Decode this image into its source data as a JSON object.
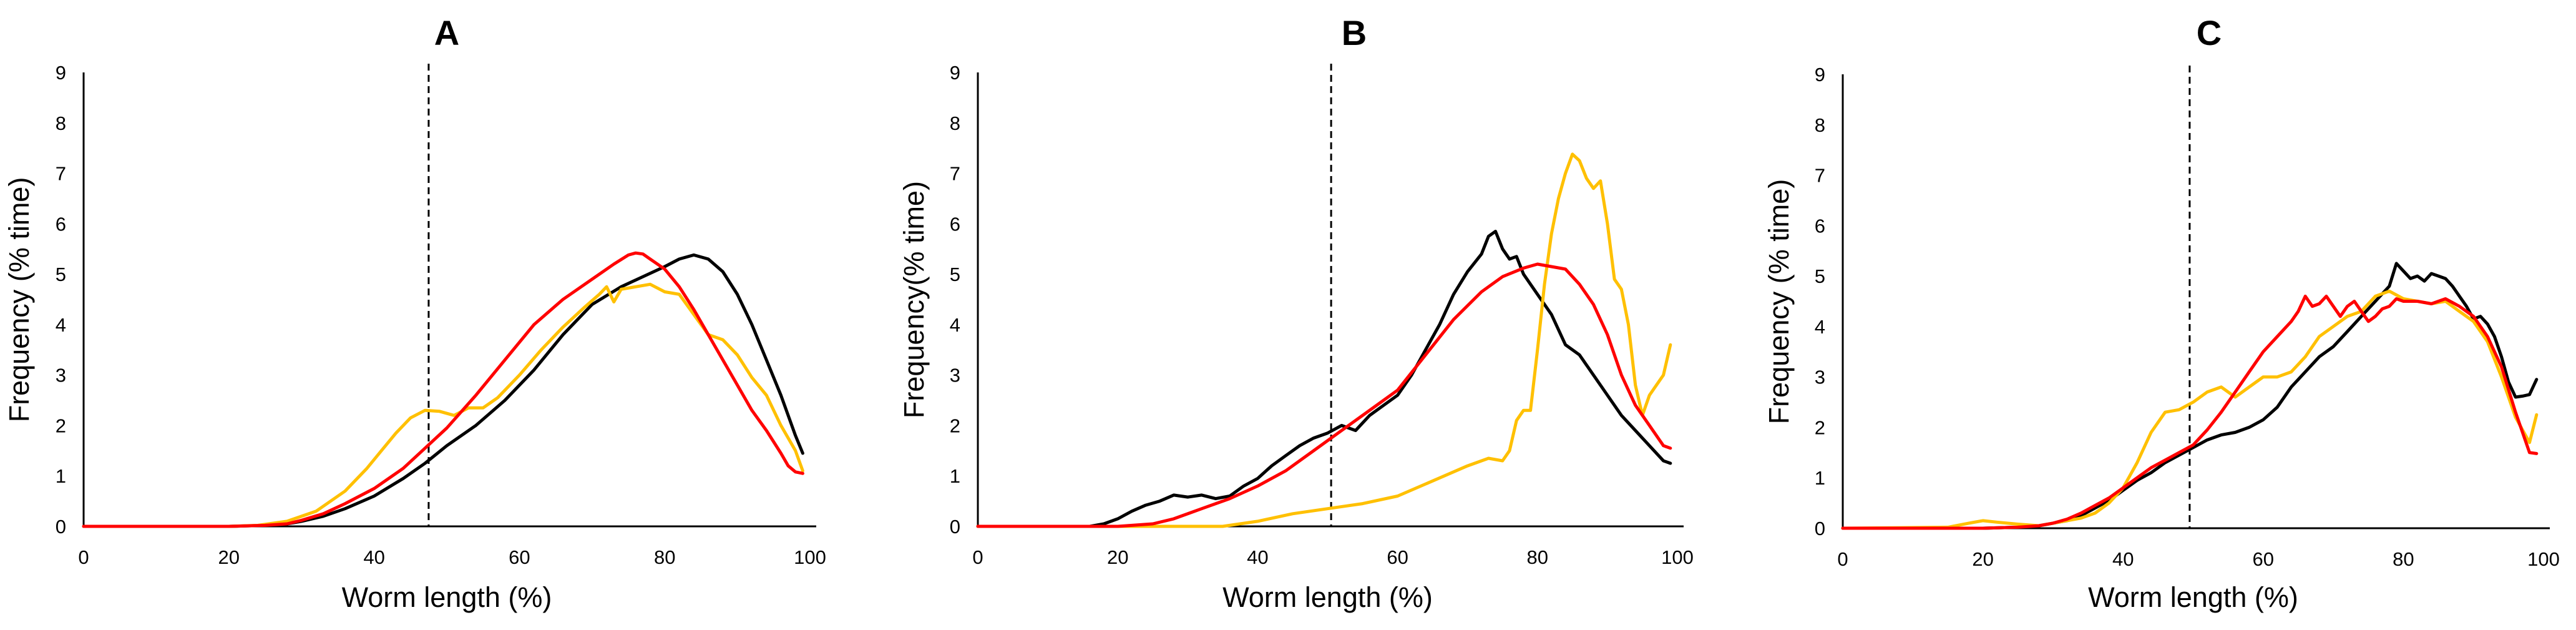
{
  "chart_data": [
    {
      "type": "line",
      "title": "A",
      "xlabel": "Worm length (%)",
      "ylabel": "Frequency (% time)",
      "xlim": [
        0,
        100
      ],
      "ylim": [
        0,
        9
      ],
      "xticks": [
        0,
        20,
        40,
        60,
        80,
        100
      ],
      "yticks": [
        0,
        1,
        2,
        3,
        4,
        5,
        6,
        7,
        8,
        9
      ],
      "vline_x": 47.5,
      "series": [
        {
          "name": "black",
          "color": "#000000",
          "x": [
            0,
            20,
            25,
            28,
            30,
            33,
            36,
            40,
            44,
            47,
            50,
            54,
            58,
            62,
            66,
            70,
            74,
            77,
            80,
            82,
            84,
            86,
            88,
            90,
            92,
            94,
            96,
            98,
            99
          ],
          "y": [
            0,
            0,
            0.02,
            0.05,
            0.1,
            0.2,
            0.35,
            0.6,
            0.95,
            1.25,
            1.6,
            2.0,
            2.5,
            3.1,
            3.8,
            4.4,
            4.75,
            4.95,
            5.15,
            5.3,
            5.38,
            5.3,
            5.05,
            4.6,
            4.0,
            3.3,
            2.6,
            1.8,
            1.45
          ]
        },
        {
          "name": "red",
          "color": "#ff0000",
          "x": [
            0,
            20,
            25,
            28,
            30,
            33,
            36,
            40,
            44,
            47,
            50,
            54,
            58,
            62,
            66,
            70,
            73,
            75,
            76,
            77,
            78,
            80,
            82,
            84,
            86,
            88,
            90,
            92,
            94,
            96,
            97,
            98,
            99
          ],
          "y": [
            0,
            0,
            0.02,
            0.05,
            0.12,
            0.25,
            0.45,
            0.75,
            1.15,
            1.55,
            1.95,
            2.6,
            3.3,
            4.0,
            4.5,
            4.9,
            5.2,
            5.38,
            5.42,
            5.4,
            5.3,
            5.1,
            4.75,
            4.3,
            3.8,
            3.3,
            2.8,
            2.3,
            1.9,
            1.45,
            1.2,
            1.08,
            1.05
          ]
        },
        {
          "name": "yellow",
          "color": "#ffc000",
          "x": [
            0,
            20,
            24,
            28,
            32,
            36,
            39,
            41,
            43,
            45,
            47,
            49,
            51,
            53,
            55,
            57,
            60,
            63,
            66,
            69,
            71,
            72,
            73,
            74,
            76,
            78,
            80,
            82,
            84,
            86,
            88,
            90,
            92,
            94,
            96,
            98,
            99
          ],
          "y": [
            0,
            0,
            0.02,
            0.1,
            0.3,
            0.7,
            1.15,
            1.5,
            1.85,
            2.15,
            2.3,
            2.28,
            2.2,
            2.35,
            2.35,
            2.55,
            3.0,
            3.5,
            3.95,
            4.35,
            4.6,
            4.75,
            4.45,
            4.7,
            4.75,
            4.8,
            4.65,
            4.6,
            4.2,
            3.8,
            3.7,
            3.4,
            2.95,
            2.6,
            2.0,
            1.5,
            1.1
          ]
        }
      ]
    },
    {
      "type": "line",
      "title": "B",
      "xlabel": "Worm length (%)",
      "ylabel": "Frequency(% time)",
      "xlim": [
        0,
        100
      ],
      "ylim": [
        0,
        9
      ],
      "xticks": [
        0,
        20,
        40,
        60,
        80,
        100
      ],
      "yticks": [
        0,
        1,
        2,
        3,
        4,
        5,
        6,
        7,
        8,
        9
      ],
      "vline_x": 50.5,
      "series": [
        {
          "name": "black",
          "color": "#000000",
          "x": [
            0,
            16,
            18,
            20,
            22,
            24,
            26,
            28,
            30,
            32,
            34,
            36,
            38,
            40,
            42,
            44,
            46,
            48,
            50,
            52,
            54,
            56,
            58,
            60,
            62,
            64,
            66,
            68,
            70,
            72,
            73,
            74,
            75,
            76,
            77,
            78,
            80,
            82,
            84,
            86,
            88,
            90,
            92,
            94,
            96,
            98,
            99
          ],
          "y": [
            0,
            0,
            0.05,
            0.15,
            0.3,
            0.42,
            0.5,
            0.62,
            0.58,
            0.62,
            0.55,
            0.6,
            0.8,
            0.95,
            1.2,
            1.4,
            1.6,
            1.75,
            1.85,
            2.0,
            1.9,
            2.2,
            2.4,
            2.6,
            3.0,
            3.5,
            4.0,
            4.6,
            5.05,
            5.4,
            5.75,
            5.85,
            5.5,
            5.3,
            5.35,
            5.0,
            4.6,
            4.2,
            3.6,
            3.4,
            3.0,
            2.6,
            2.2,
            1.9,
            1.6,
            1.3,
            1.25
          ]
        },
        {
          "name": "red",
          "color": "#ff0000",
          "x": [
            0,
            20,
            25,
            28,
            32,
            36,
            40,
            44,
            48,
            52,
            56,
            60,
            64,
            68,
            72,
            75,
            78,
            80,
            82,
            84,
            86,
            88,
            90,
            92,
            94,
            96,
            98,
            99
          ],
          "y": [
            0,
            0,
            0.05,
            0.15,
            0.35,
            0.55,
            0.8,
            1.1,
            1.5,
            1.9,
            2.3,
            2.7,
            3.4,
            4.1,
            4.65,
            4.95,
            5.12,
            5.2,
            5.15,
            5.1,
            4.8,
            4.4,
            3.8,
            3.0,
            2.4,
            2.0,
            1.6,
            1.55
          ]
        },
        {
          "name": "yellow",
          "color": "#ffc000",
          "x": [
            0,
            35,
            40,
            45,
            50,
            55,
            60,
            65,
            70,
            73,
            75,
            76,
            77,
            78,
            79,
            80,
            81,
            82,
            83,
            84,
            85,
            86,
            87,
            88,
            89,
            90,
            91,
            92,
            93,
            94,
            95,
            96,
            97,
            98,
            99
          ],
          "y": [
            0,
            0,
            0.1,
            0.25,
            0.35,
            0.45,
            0.6,
            0.9,
            1.2,
            1.35,
            1.3,
            1.5,
            2.1,
            2.3,
            2.3,
            3.5,
            4.8,
            5.8,
            6.5,
            7.0,
            7.38,
            7.25,
            6.9,
            6.7,
            6.85,
            6.0,
            4.9,
            4.7,
            4.0,
            2.8,
            2.2,
            2.6,
            2.8,
            3.0,
            3.6
          ]
        }
      ]
    },
    {
      "type": "line",
      "title": "C",
      "xlabel": "Worm length (%)",
      "ylabel": "Frequency (% time)",
      "xlim": [
        0,
        100
      ],
      "ylim": [
        0,
        9
      ],
      "xticks": [
        0,
        20,
        40,
        60,
        80,
        100
      ],
      "yticks": [
        0,
        1,
        2,
        3,
        4,
        5,
        6,
        7,
        8,
        9
      ],
      "vline_x": 49.5,
      "series": [
        {
          "name": "black",
          "color": "#000000",
          "x": [
            0,
            20,
            25,
            28,
            30,
            32,
            34,
            36,
            38,
            40,
            42,
            44,
            46,
            48,
            50,
            52,
            54,
            56,
            58,
            60,
            62,
            64,
            66,
            68,
            70,
            72,
            74,
            76,
            78,
            79,
            80,
            81,
            82,
            83,
            84,
            85,
            86,
            87,
            88,
            89,
            90,
            91,
            92,
            93,
            94,
            95,
            96,
            97,
            98,
            99
          ],
          "y": [
            0,
            0,
            0.02,
            0.05,
            0.1,
            0.15,
            0.25,
            0.4,
            0.55,
            0.75,
            0.95,
            1.1,
            1.3,
            1.45,
            1.6,
            1.75,
            1.85,
            1.9,
            2.0,
            2.15,
            2.4,
            2.8,
            3.1,
            3.4,
            3.6,
            3.9,
            4.2,
            4.5,
            4.8,
            5.25,
            5.1,
            4.95,
            5.0,
            4.9,
            5.05,
            5.0,
            4.95,
            4.8,
            4.6,
            4.4,
            4.15,
            4.2,
            4.05,
            3.8,
            3.4,
            2.9,
            2.6,
            2.62,
            2.65,
            2.95
          ]
        },
        {
          "name": "red",
          "color": "#ff0000",
          "x": [
            0,
            20,
            25,
            28,
            30,
            32,
            34,
            36,
            38,
            40,
            42,
            44,
            46,
            48,
            50,
            52,
            54,
            56,
            58,
            60,
            62,
            64,
            65,
            66,
            67,
            68,
            69,
            70,
            71,
            72,
            73,
            74,
            75,
            76,
            77,
            78,
            79,
            80,
            82,
            84,
            86,
            88,
            90,
            92,
            94,
            96,
            98,
            99
          ],
          "y": [
            0,
            0,
            0.02,
            0.05,
            0.1,
            0.18,
            0.3,
            0.45,
            0.6,
            0.8,
            1.0,
            1.2,
            1.35,
            1.5,
            1.65,
            1.95,
            2.3,
            2.7,
            3.1,
            3.5,
            3.8,
            4.1,
            4.3,
            4.6,
            4.4,
            4.45,
            4.6,
            4.4,
            4.2,
            4.4,
            4.5,
            4.3,
            4.1,
            4.2,
            4.35,
            4.4,
            4.55,
            4.5,
            4.5,
            4.45,
            4.55,
            4.4,
            4.2,
            3.8,
            3.2,
            2.3,
            1.5,
            1.48
          ]
        },
        {
          "name": "yellow",
          "color": "#ffc000",
          "x": [
            0,
            15,
            18,
            20,
            22,
            25,
            28,
            30,
            32,
            34,
            36,
            38,
            40,
            42,
            44,
            46,
            48,
            50,
            52,
            54,
            56,
            58,
            60,
            62,
            64,
            66,
            68,
            70,
            72,
            74,
            76,
            78,
            80,
            82,
            84,
            86,
            88,
            90,
            92,
            94,
            96,
            98,
            99
          ],
          "y": [
            0,
            0.02,
            0.1,
            0.15,
            0.12,
            0.08,
            0.05,
            0.1,
            0.15,
            0.2,
            0.3,
            0.5,
            0.8,
            1.3,
            1.9,
            2.3,
            2.35,
            2.5,
            2.7,
            2.8,
            2.6,
            2.8,
            3.0,
            3.0,
            3.1,
            3.4,
            3.8,
            4.0,
            4.2,
            4.3,
            4.6,
            4.7,
            4.55,
            4.5,
            4.45,
            4.5,
            4.3,
            4.1,
            3.7,
            3.0,
            2.2,
            1.7,
            2.25
          ]
        }
      ]
    }
  ]
}
